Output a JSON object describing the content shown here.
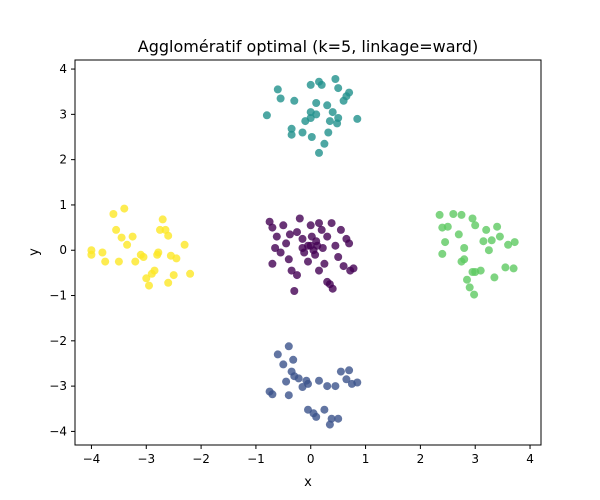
{
  "chart_data": {
    "type": "scatter",
    "title": "Agglomératif optimal (k=5, linkage=ward)",
    "xlabel": "x",
    "ylabel": "y",
    "xlim": [
      -4.3,
      4.2
    ],
    "ylim": [
      -4.3,
      4.2
    ],
    "xticks": [
      -4,
      -3,
      -2,
      -1,
      0,
      1,
      2,
      3,
      4
    ],
    "yticks": [
      -4,
      -3,
      -2,
      -1,
      0,
      1,
      2,
      3,
      4
    ],
    "xtick_labels": [
      "−4",
      "−3",
      "−2",
      "−1",
      "0",
      "1",
      "2",
      "3",
      "4"
    ],
    "ytick_labels": [
      "−4",
      "−3",
      "−2",
      "−1",
      "0",
      "1",
      "2",
      "3",
      "4"
    ],
    "grid": false,
    "series": [
      {
        "color": "#440154",
        "points": [
          [
            -0.75,
            0.63
          ],
          [
            -0.7,
            0.5
          ],
          [
            -0.62,
            0.3
          ],
          [
            -0.55,
            -0.05
          ],
          [
            -0.7,
            -0.3
          ],
          [
            -0.65,
            0.05
          ],
          [
            -0.5,
            0.55
          ],
          [
            -0.45,
            0.15
          ],
          [
            -0.4,
            -0.2
          ],
          [
            -0.35,
            -0.45
          ],
          [
            -0.3,
            -0.9
          ],
          [
            -0.25,
            0.4
          ],
          [
            -0.2,
            0.7
          ],
          [
            -0.15,
            0.25
          ],
          [
            -0.12,
            -0.05
          ],
          [
            -0.05,
            0.1
          ],
          [
            -0.05,
            -0.25
          ],
          [
            0.0,
            0.55
          ],
          [
            0.02,
            0.3
          ],
          [
            0.05,
            0.0
          ],
          [
            0.08,
            -0.1
          ],
          [
            0.1,
            0.2
          ],
          [
            0.15,
            0.6
          ],
          [
            0.15,
            -0.45
          ],
          [
            0.2,
            0.45
          ],
          [
            0.22,
            0.05
          ],
          [
            0.25,
            -0.3
          ],
          [
            0.3,
            0.3
          ],
          [
            0.3,
            -0.7
          ],
          [
            0.35,
            -0.75
          ],
          [
            0.38,
            0.6
          ],
          [
            0.4,
            -0.85
          ],
          [
            0.45,
            0.1
          ],
          [
            0.5,
            -0.15
          ],
          [
            0.55,
            0.45
          ],
          [
            0.6,
            -0.35
          ],
          [
            0.65,
            0.25
          ],
          [
            0.7,
            0.15
          ],
          [
            0.72,
            -0.45
          ],
          [
            0.78,
            -0.4
          ],
          [
            -0.38,
            0.35
          ],
          [
            -0.25,
            -0.55
          ],
          [
            0.0,
            0.1
          ],
          [
            -0.15,
            0.05
          ],
          [
            0.12,
            0.1
          ]
        ]
      },
      {
        "color": "#3b528b",
        "points": [
          [
            -0.75,
            -3.12
          ],
          [
            -0.7,
            -3.18
          ],
          [
            -0.6,
            -2.3
          ],
          [
            -0.45,
            -2.9
          ],
          [
            -0.4,
            -3.2
          ],
          [
            -0.4,
            -2.12
          ],
          [
            -0.32,
            -2.42
          ],
          [
            -0.3,
            -2.78
          ],
          [
            -0.22,
            -2.83
          ],
          [
            -0.15,
            -3.02
          ],
          [
            -0.08,
            -2.88
          ],
          [
            -0.05,
            -2.95
          ],
          [
            -0.05,
            -3.52
          ],
          [
            0.05,
            -3.6
          ],
          [
            0.1,
            -3.68
          ],
          [
            0.15,
            -2.88
          ],
          [
            0.25,
            -3.52
          ],
          [
            0.3,
            -3.0
          ],
          [
            0.35,
            -3.85
          ],
          [
            0.38,
            -3.72
          ],
          [
            0.45,
            -3.0
          ],
          [
            0.5,
            -3.72
          ],
          [
            0.55,
            -2.68
          ],
          [
            0.65,
            -2.85
          ],
          [
            0.7,
            -2.65
          ],
          [
            0.75,
            -2.95
          ],
          [
            0.85,
            -2.92
          ],
          [
            -0.35,
            -2.68
          ],
          [
            -0.5,
            -2.52
          ]
        ]
      },
      {
        "color": "#21918c",
        "points": [
          [
            -0.8,
            2.98
          ],
          [
            -0.6,
            3.55
          ],
          [
            -0.55,
            3.35
          ],
          [
            -0.35,
            2.68
          ],
          [
            -0.35,
            2.55
          ],
          [
            -0.3,
            3.3
          ],
          [
            -0.15,
            2.6
          ],
          [
            -0.1,
            2.85
          ],
          [
            0.0,
            3.05
          ],
          [
            0.0,
            3.65
          ],
          [
            0.0,
            2.92
          ],
          [
            0.02,
            2.5
          ],
          [
            0.1,
            3.0
          ],
          [
            0.15,
            3.72
          ],
          [
            0.15,
            2.15
          ],
          [
            0.2,
            3.65
          ],
          [
            0.25,
            2.35
          ],
          [
            0.3,
            3.2
          ],
          [
            0.32,
            2.6
          ],
          [
            0.35,
            2.85
          ],
          [
            0.4,
            3.05
          ],
          [
            0.45,
            3.78
          ],
          [
            0.48,
            2.8
          ],
          [
            0.5,
            2.92
          ],
          [
            0.5,
            3.58
          ],
          [
            0.6,
            3.3
          ],
          [
            0.65,
            3.4
          ],
          [
            0.7,
            3.48
          ],
          [
            0.85,
            2.9
          ],
          [
            0.1,
            3.25
          ]
        ]
      },
      {
        "color": "#5ec962",
        "points": [
          [
            2.35,
            0.78
          ],
          [
            2.4,
            0.5
          ],
          [
            2.4,
            -0.08
          ],
          [
            2.45,
            0.18
          ],
          [
            2.5,
            0.52
          ],
          [
            2.6,
            0.8
          ],
          [
            2.7,
            0.35
          ],
          [
            2.75,
            0.78
          ],
          [
            2.8,
            -0.2
          ],
          [
            2.8,
            0.05
          ],
          [
            2.85,
            -0.65
          ],
          [
            2.9,
            -0.82
          ],
          [
            2.95,
            -0.48
          ],
          [
            2.95,
            0.7
          ],
          [
            2.98,
            -0.98
          ],
          [
            3.0,
            -0.48
          ],
          [
            3.0,
            0.55
          ],
          [
            3.1,
            -0.45
          ],
          [
            3.15,
            0.2
          ],
          [
            3.2,
            0.45
          ],
          [
            3.25,
            0.0
          ],
          [
            3.3,
            0.22
          ],
          [
            3.35,
            -0.6
          ],
          [
            3.4,
            0.52
          ],
          [
            3.45,
            0.3
          ],
          [
            3.55,
            -0.38
          ],
          [
            3.6,
            0.12
          ],
          [
            3.7,
            -0.4
          ],
          [
            3.72,
            0.18
          ],
          [
            2.75,
            -0.25
          ]
        ]
      },
      {
        "color": "#fde725",
        "points": [
          [
            -4.0,
            0.0
          ],
          [
            -4.0,
            -0.1
          ],
          [
            -3.8,
            -0.05
          ],
          [
            -3.75,
            -0.25
          ],
          [
            -3.6,
            0.8
          ],
          [
            -3.55,
            0.45
          ],
          [
            -3.5,
            -0.25
          ],
          [
            -3.45,
            0.28
          ],
          [
            -3.4,
            0.92
          ],
          [
            -3.35,
            0.12
          ],
          [
            -3.25,
            0.3
          ],
          [
            -3.2,
            -0.25
          ],
          [
            -3.1,
            -0.1
          ],
          [
            -3.05,
            -0.15
          ],
          [
            -3.0,
            -0.62
          ],
          [
            -2.95,
            -0.78
          ],
          [
            -2.9,
            -0.52
          ],
          [
            -2.85,
            -0.45
          ],
          [
            -2.8,
            -0.1
          ],
          [
            -2.78,
            -0.05
          ],
          [
            -2.75,
            0.45
          ],
          [
            -2.7,
            0.68
          ],
          [
            -2.65,
            0.45
          ],
          [
            -2.6,
            -0.72
          ],
          [
            -2.55,
            -0.12
          ],
          [
            -2.5,
            -0.55
          ],
          [
            -2.45,
            -0.18
          ],
          [
            -2.3,
            0.12
          ],
          [
            -2.2,
            -0.52
          ],
          [
            -2.6,
            0.32
          ]
        ]
      }
    ]
  }
}
